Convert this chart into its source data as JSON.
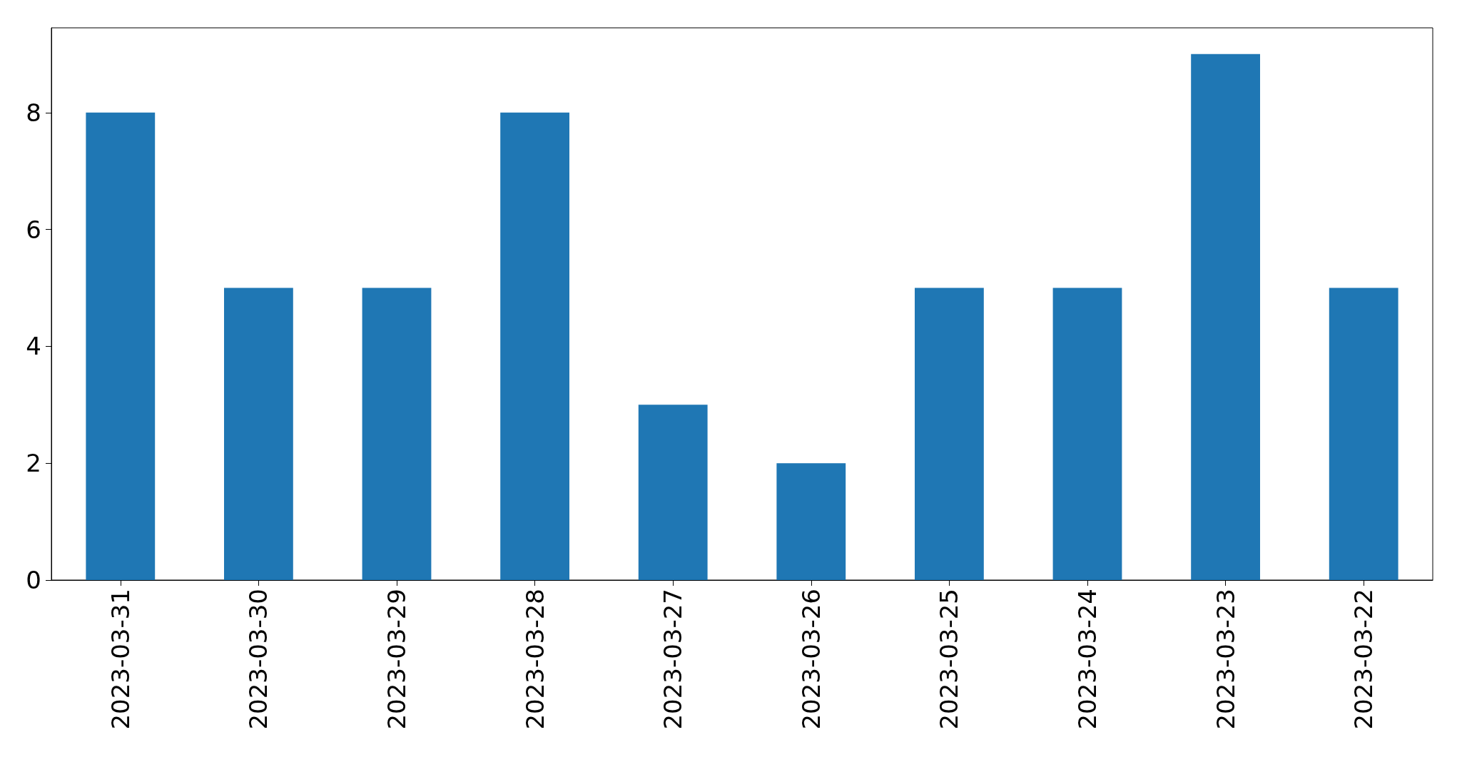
{
  "chart_data": {
    "type": "bar",
    "categories": [
      "2023-03-31",
      "2023-03-30",
      "2023-03-29",
      "2023-03-28",
      "2023-03-27",
      "2023-03-26",
      "2023-03-25",
      "2023-03-24",
      "2023-03-23",
      "2023-03-22"
    ],
    "values": [
      8,
      5,
      5,
      8,
      3,
      2,
      5,
      5,
      9,
      5
    ],
    "color": "#1f77b4",
    "ylim": [
      0,
      9.45
    ],
    "yticks": [
      0,
      2,
      4,
      6,
      8
    ],
    "grid": false
  }
}
